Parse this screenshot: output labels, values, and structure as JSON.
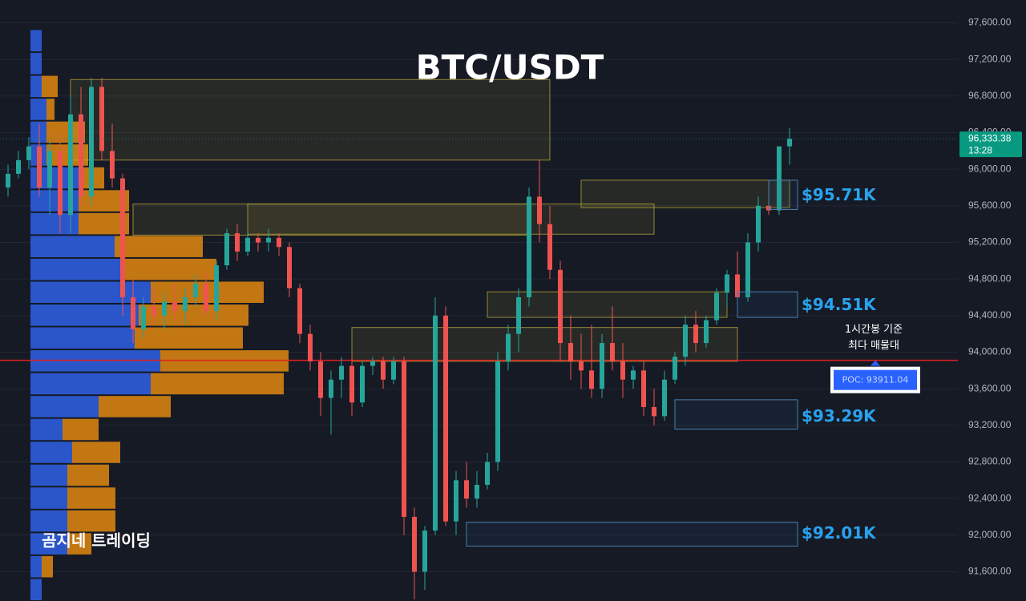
{
  "chart_data": {
    "type": "candlestick",
    "title": "BTC/USDT",
    "watermark": "곰지네 트레이딩",
    "ylim": [
      91280,
      97850
    ],
    "yticks": [
      {
        "value": 97600,
        "label": "97,600.00"
      },
      {
        "value": 97200,
        "label": "97,200.00"
      },
      {
        "value": 96800,
        "label": "96,800.00"
      },
      {
        "value": 96400,
        "label": "96,400.00"
      },
      {
        "value": 96000,
        "label": "96,000.00"
      },
      {
        "value": 95600,
        "label": "95,600.00"
      },
      {
        "value": 95200,
        "label": "95,200.00"
      },
      {
        "value": 94800,
        "label": "94,800.00"
      },
      {
        "value": 94400,
        "label": "94,400.00"
      },
      {
        "value": 94000,
        "label": "94,000.00"
      },
      {
        "value": 93600,
        "label": "93,600.00"
      },
      {
        "value": 93200,
        "label": "93,200.00"
      },
      {
        "value": 92800,
        "label": "92,800.00"
      },
      {
        "value": 92400,
        "label": "92,400.00"
      },
      {
        "value": 92000,
        "label": "92,000.00"
      },
      {
        "value": 91600,
        "label": "91,600.00"
      }
    ],
    "grid": true,
    "up_color": "#26a69a",
    "down_color": "#ef5350",
    "last_price": {
      "value": 96333.38,
      "label": "96,333.38",
      "time": "13:28",
      "color": "#089981"
    },
    "candles": {
      "open": [
        95800,
        95950,
        96100,
        96250,
        95800,
        96200,
        95500,
        96600,
        95700,
        96900,
        96200,
        95900,
        94600,
        94250,
        94500,
        94400,
        94550,
        94450,
        94600,
        94750,
        94450,
        94950,
        95300,
        95100,
        95250,
        95200,
        95250,
        95150,
        94700,
        94200,
        93900,
        93500,
        93700,
        93850,
        93450,
        93850,
        93900,
        93700,
        93900,
        92200,
        91600,
        92050,
        94400,
        92150,
        92600,
        92400,
        92550,
        92800,
        93900,
        94200,
        94600,
        95700,
        95400,
        94900,
        94100,
        93900,
        93800,
        93600,
        94100,
        93900,
        93700,
        93800,
        93400,
        93300,
        93700,
        93950,
        94300,
        94100,
        94350,
        94650,
        94850,
        94600,
        95200,
        95600,
        95550,
        96250
      ],
      "high": [
        96050,
        96200,
        96350,
        96500,
        96300,
        96400,
        96800,
        96900,
        97000,
        97000,
        96500,
        95950,
        94800,
        94600,
        94700,
        94650,
        94750,
        94700,
        94850,
        94900,
        95000,
        95350,
        95400,
        95300,
        95300,
        95350,
        95300,
        95200,
        94750,
        94300,
        94000,
        93800,
        93950,
        93950,
        93900,
        93950,
        93950,
        93950,
        93950,
        92300,
        92100,
        94600,
        94500,
        92700,
        92800,
        92700,
        92900,
        94000,
        94300,
        94700,
        95800,
        96100,
        95600,
        95000,
        94400,
        94200,
        94300,
        94200,
        94500,
        94100,
        93850,
        93900,
        93600,
        93800,
        94000,
        94400,
        94450,
        94400,
        94700,
        94900,
        95100,
        95300,
        95700,
        95750,
        96250,
        96450
      ],
      "low": [
        95700,
        95900,
        96000,
        95700,
        95500,
        95300,
        95300,
        95600,
        95600,
        96100,
        95800,
        94400,
        94100,
        94150,
        94300,
        94250,
        94350,
        94300,
        94500,
        94400,
        94350,
        94900,
        95000,
        95050,
        95100,
        95100,
        95050,
        94600,
        94100,
        93800,
        93300,
        93100,
        93500,
        93300,
        93400,
        93750,
        93600,
        93650,
        92000,
        91300,
        91400,
        92000,
        92100,
        92000,
        92300,
        92300,
        92500,
        92700,
        93800,
        94000,
        94500,
        95200,
        94800,
        93900,
        93700,
        93600,
        93500,
        93500,
        93800,
        93500,
        93600,
        93300,
        93200,
        93250,
        93650,
        93850,
        94000,
        94050,
        94300,
        94500,
        94500,
        94550,
        95100,
        95500,
        95500,
        96050
      ],
      "close": [
        95950,
        96100,
        96250,
        95800,
        96200,
        95500,
        96600,
        95700,
        96900,
        96200,
        95900,
        94600,
        94250,
        94500,
        94400,
        94550,
        94450,
        94600,
        94750,
        94450,
        94950,
        95300,
        95100,
        95250,
        95200,
        95250,
        95150,
        94700,
        94200,
        93900,
        93500,
        93700,
        93850,
        93450,
        93850,
        93900,
        93700,
        93900,
        92200,
        91600,
        92050,
        94400,
        92150,
        92600,
        92400,
        92550,
        92800,
        93900,
        94200,
        94600,
        95700,
        95400,
        94900,
        94100,
        93900,
        93800,
        93600,
        94100,
        93900,
        93700,
        93800,
        93400,
        93300,
        93700,
        93950,
        94300,
        94100,
        94350,
        94650,
        94850,
        94600,
        95200,
        95600,
        95550,
        96250,
        96333.38
      ]
    },
    "volume_profile": {
      "bins": [
        97530,
        97280,
        97030,
        96780,
        96530,
        96280,
        96030,
        95780,
        95530,
        95280,
        95030,
        94780,
        94530,
        94280,
        94030,
        93780,
        93530,
        93280,
        93030,
        92780,
        92530,
        92280,
        92030,
        91780,
        91530,
        91280
      ],
      "buy": [
        14,
        14,
        14,
        20,
        20,
        20,
        60,
        60,
        60,
        105,
        117,
        150,
        135,
        130,
        162,
        150,
        85,
        40,
        52,
        46,
        46,
        46,
        46,
        14,
        14
      ],
      "sell": [
        0,
        0,
        20,
        10,
        48,
        52,
        32,
        63,
        63,
        110,
        115,
        141,
        137,
        135,
        160,
        166,
        90,
        45,
        60,
        52,
        60,
        60,
        30,
        14,
        0
      ],
      "buy_color": "#2f62e6",
      "sell_color": "#e0880f"
    },
    "zones": [
      {
        "top": 96980,
        "bottom": 96100,
        "start": 6,
        "end": 52,
        "color": "#c9b43a"
      },
      {
        "top": 95620,
        "bottom": 95280,
        "start": 12,
        "end": 50,
        "color": "#c9b43a"
      },
      {
        "top": 95620,
        "bottom": 95290,
        "start": 23,
        "end": 62,
        "color": "#c9b43a"
      },
      {
        "top": 95880,
        "bottom": 95580,
        "start": 55,
        "end": 75,
        "color": "#c9b43a"
      },
      {
        "top": 94660,
        "bottom": 94380,
        "start": 46,
        "end": 69,
        "color": "#c9b43a"
      },
      {
        "top": 94270,
        "bottom": 93900,
        "start": 33,
        "end": 70,
        "color": "#c9b43a"
      }
    ],
    "levels": [
      {
        "value": 95710,
        "label": "$95.71K",
        "top": 95880,
        "bottom": 95560,
        "start": 73
      },
      {
        "value": 94510,
        "label": "$94.51K",
        "top": 94660,
        "bottom": 94380,
        "start": 70
      },
      {
        "value": 93290,
        "label": "$93.29K",
        "top": 93480,
        "bottom": 93160,
        "start": 64
      },
      {
        "value": 92010,
        "label": "$92.01K",
        "top": 92140,
        "bottom": 91880,
        "start": 44
      }
    ],
    "level_color": "#29a3ef",
    "poc": {
      "value": 93911.04,
      "label": "POC: 93911.04",
      "note": [
        "1시간봉 기준",
        "최다 매물대"
      ],
      "color": "#e02020"
    }
  }
}
